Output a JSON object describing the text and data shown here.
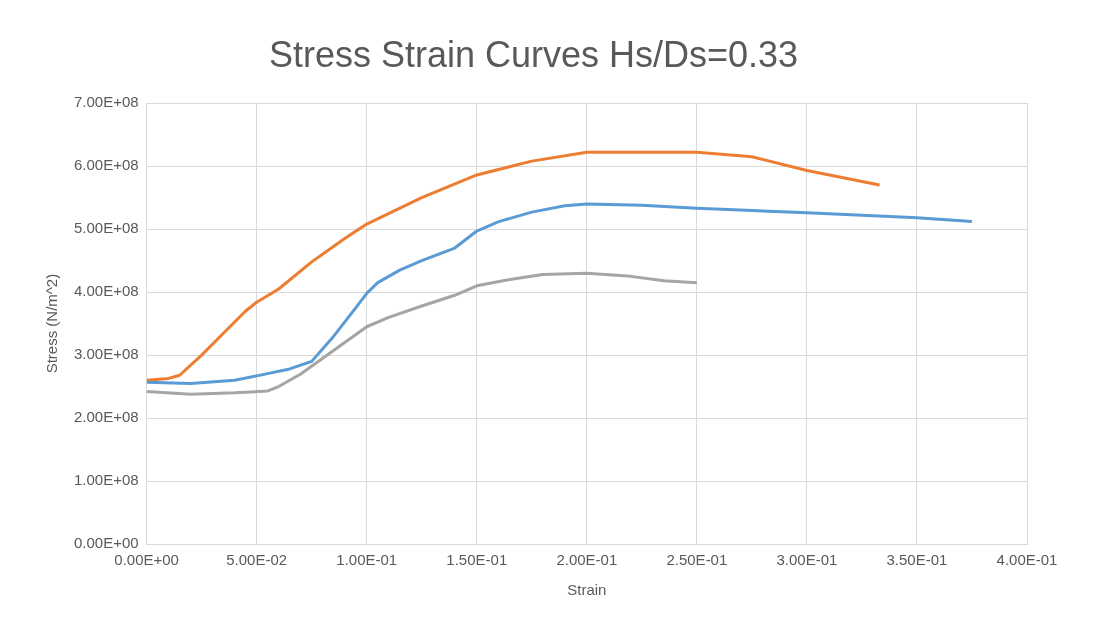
{
  "chart_data": {
    "type": "line",
    "title": "Stress Strain Curves Hs/Ds=0.33",
    "xlabel": "Strain",
    "ylabel": "Stress (N/m^2)",
    "marker": "none",
    "grid": true,
    "legend": false,
    "xlim": [
      0,
      0.4
    ],
    "ylim": [
      0,
      700000000
    ],
    "xticks": [
      {
        "value": 0,
        "label": "0.00E+00"
      },
      {
        "value": 0.05,
        "label": "5.00E-02"
      },
      {
        "value": 0.1,
        "label": "1.00E-01"
      },
      {
        "value": 0.15,
        "label": "1.50E-01"
      },
      {
        "value": 0.2,
        "label": "2.00E-01"
      },
      {
        "value": 0.25,
        "label": "2.50E-01"
      },
      {
        "value": 0.3,
        "label": "3.00E-01"
      },
      {
        "value": 0.35,
        "label": "3.50E-01"
      },
      {
        "value": 0.4,
        "label": "4.00E-01"
      }
    ],
    "yticks": [
      {
        "value": 0,
        "label": "0.00E+00"
      },
      {
        "value": 100000000,
        "label": "1.00E+08"
      },
      {
        "value": 200000000,
        "label": "2.00E+08"
      },
      {
        "value": 300000000,
        "label": "3.00E+08"
      },
      {
        "value": 400000000,
        "label": "4.00E+08"
      },
      {
        "value": 500000000,
        "label": "5.00E+08"
      },
      {
        "value": 600000000,
        "label": "6.00E+08"
      },
      {
        "value": 700000000,
        "label": "7.00E+08"
      }
    ],
    "series": [
      {
        "color": "#5b9bd5",
        "x": [
          0,
          0.02,
          0.04,
          0.05,
          0.065,
          0.075,
          0.085,
          0.095,
          0.1,
          0.105,
          0.115,
          0.125,
          0.14,
          0.15,
          0.16,
          0.175,
          0.19,
          0.2,
          0.225,
          0.25,
          0.3,
          0.35,
          0.375
        ],
        "values": [
          257000000,
          255000000,
          260000000,
          267000000,
          278000000,
          290000000,
          330000000,
          375000000,
          398000000,
          415000000,
          435000000,
          450000000,
          470000000,
          497000000,
          512000000,
          527000000,
          537000000,
          540000000,
          538000000,
          533000000,
          526000000,
          518000000,
          512000000
        ]
      },
      {
        "color": "#ed7d31",
        "x": [
          0,
          0.01,
          0.015,
          0.025,
          0.035,
          0.045,
          0.05,
          0.06,
          0.075,
          0.09,
          0.1,
          0.125,
          0.15,
          0.175,
          0.2,
          0.25,
          0.275,
          0.3,
          0.333
        ],
        "values": [
          260000000,
          263000000,
          268000000,
          300000000,
          335000000,
          370000000,
          384000000,
          405000000,
          448000000,
          485000000,
          508000000,
          550000000,
          586000000,
          608000000,
          622000000,
          622000000,
          615000000,
          593000000,
          570000000
        ]
      },
      {
        "color": "#a5a5a5",
        "x": [
          0,
          0.02,
          0.04,
          0.055,
          0.06,
          0.07,
          0.08,
          0.09,
          0.1,
          0.11,
          0.125,
          0.14,
          0.15,
          0.165,
          0.18,
          0.2,
          0.22,
          0.235,
          0.25
        ],
        "values": [
          242000000,
          238000000,
          240000000,
          243000000,
          250000000,
          270000000,
          295000000,
          320000000,
          345000000,
          360000000,
          378000000,
          395000000,
          410000000,
          420000000,
          428000000,
          430000000,
          425000000,
          418000000,
          415000000
        ]
      }
    ]
  }
}
